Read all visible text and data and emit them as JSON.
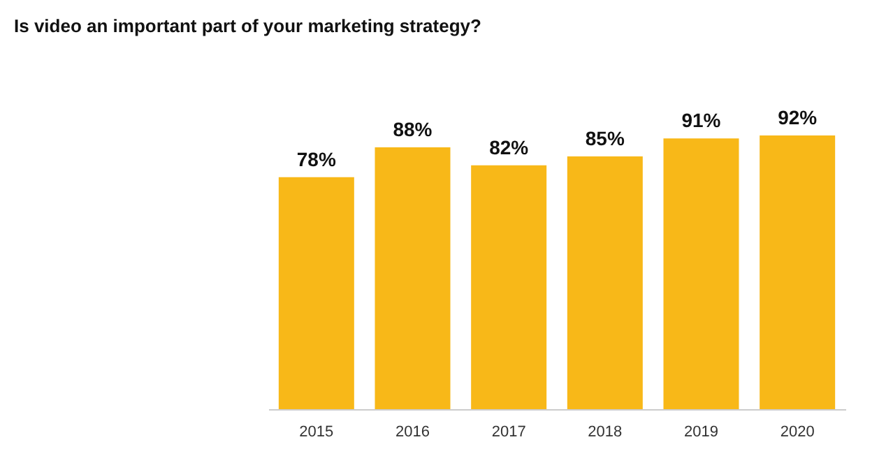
{
  "chart_data": {
    "type": "bar",
    "title": "Is video an important part of your marketing strategy?",
    "categories": [
      "2015",
      "2016",
      "2017",
      "2018",
      "2019",
      "2020"
    ],
    "values": [
      78,
      88,
      82,
      85,
      91,
      92
    ],
    "value_labels": [
      "78%",
      "88%",
      "82%",
      "85%",
      "91%",
      "92%"
    ],
    "color": "#f8b818"
  }
}
